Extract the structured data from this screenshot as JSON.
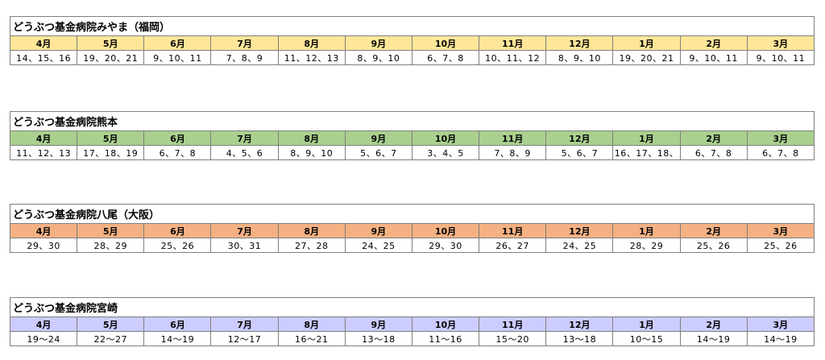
{
  "months": [
    "4月",
    "5月",
    "6月",
    "7月",
    "8月",
    "9月",
    "10月",
    "11月",
    "12月",
    "1月",
    "2月",
    "3月"
  ],
  "hospitals": [
    {
      "name": "どうぶつ基金病院みやま（福岡）",
      "header_color": "#ffe699",
      "dates": [
        "14、15、16",
        "19、20、21",
        "9、10、11",
        "7、8、9",
        "11、12、13",
        "8、9、10",
        "6、7、8",
        "10、11、12",
        "8、9、10",
        "19、20、21",
        "9、10、11",
        "9、10、11"
      ]
    },
    {
      "name": "どうぶつ基金病院熊本",
      "header_color": "#a9d08e",
      "dates": [
        "11、12、13",
        "17、18、19",
        "6、7、8",
        "4、5、6",
        "8、9、10",
        "5、6、7",
        "3、4、5",
        "7、8、9",
        "5、6、7",
        "16、17、18、",
        "6、7、8",
        "6、7、8"
      ]
    },
    {
      "name": "どうぶつ基金病院八尾（大阪）",
      "header_color": "#f4b183",
      "dates": [
        "29、30",
        "28、29",
        "25、26",
        "30、31",
        "27、28",
        "24、25",
        "29、30",
        "26、27",
        "24、25",
        "28、29",
        "25、26",
        "25、26"
      ]
    },
    {
      "name": "どうぶつ基金病院宮崎",
      "header_color": "#ccccff",
      "dates": [
        "19～24",
        "22～27",
        "14～19",
        "12～17",
        "16～21",
        "13～18",
        "11～16",
        "15～20",
        "13～18",
        "10～15",
        "14～19",
        "14～19"
      ]
    }
  ]
}
